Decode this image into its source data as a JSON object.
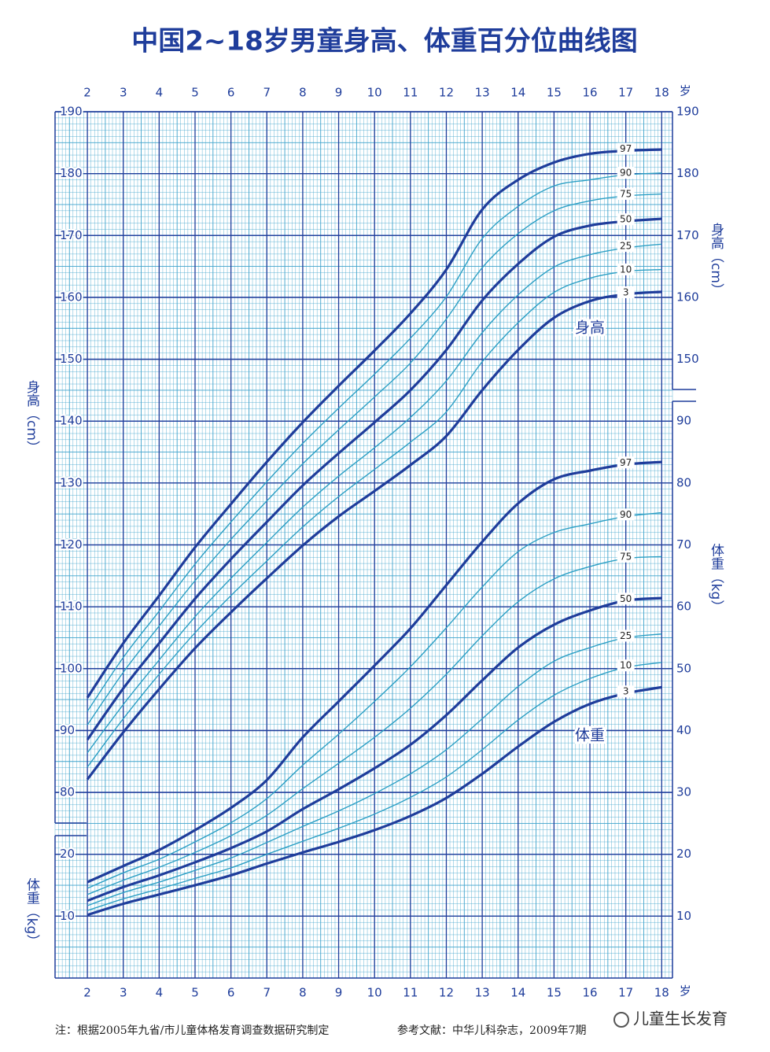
{
  "chart_data": {
    "type": "line",
    "title": "中国2~18岁男童身高、体重百分位曲线图",
    "x": [
      2,
      3,
      4,
      5,
      6,
      7,
      8,
      9,
      10,
      11,
      12,
      13,
      14,
      15,
      16,
      17,
      18
    ],
    "xlim": [
      1.1,
      18.3
    ],
    "xticks": [
      2,
      3,
      4,
      5,
      6,
      7,
      8,
      9,
      10,
      11,
      12,
      13,
      14,
      15,
      16,
      17,
      18
    ],
    "x_unit": "岁",
    "ylim": [
      50,
      190
    ],
    "yticks": [
      80,
      90,
      100,
      110,
      120,
      130,
      140,
      150,
      160,
      170,
      180,
      190
    ],
    "yticks_right": [
      150,
      160,
      170,
      180,
      190
    ],
    "y_label": "身高（cm）",
    "y2lim": [
      0,
      140
    ],
    "y2ticks": [
      10,
      20,
      30,
      40,
      50,
      60,
      70,
      80,
      90
    ],
    "y2ticks_left": [
      10,
      20
    ],
    "y2_label": "体重（kg）",
    "grid": true,
    "series": [
      {
        "name": "97",
        "color": "#1f3d9b",
        "values": [
          95.3,
          104.1,
          111.8,
          119.6,
          126.6,
          133.4,
          139.8,
          145.7,
          151.4,
          157.4,
          164.5,
          174.2,
          179.0,
          181.8,
          183.2,
          183.7,
          183.9
        ]
      },
      {
        "name": "90",
        "color": "#2b9fc4",
        "values": [
          93.1,
          101.8,
          109.3,
          116.9,
          123.7,
          130.2,
          136.4,
          142.1,
          147.6,
          153.4,
          160.1,
          169.5,
          174.7,
          178.0,
          179.0,
          179.8,
          180.1
        ]
      },
      {
        "name": "75",
        "color": "#2b9fc4",
        "values": [
          90.9,
          99.4,
          106.9,
          114.2,
          120.9,
          127.1,
          133.1,
          138.6,
          143.9,
          149.4,
          156.5,
          164.8,
          170.3,
          174.0,
          175.6,
          176.4,
          176.7
        ]
      },
      {
        "name": "50",
        "color": "#1f3d9b",
        "values": [
          88.5,
          96.8,
          104.1,
          111.3,
          117.7,
          123.7,
          129.6,
          134.8,
          139.8,
          145.0,
          151.5,
          159.5,
          165.4,
          169.8,
          171.6,
          172.3,
          172.7
        ]
      },
      {
        "name": "25",
        "color": "#2b9fc4",
        "values": [
          86.4,
          94.2,
          101.4,
          108.4,
          114.6,
          120.4,
          126.1,
          131.1,
          135.7,
          140.6,
          146.5,
          154.3,
          160.4,
          164.9,
          166.9,
          168.0,
          168.6
        ]
      },
      {
        "name": "10",
        "color": "#2b9fc4",
        "values": [
          84.1,
          91.9,
          99.1,
          105.8,
          111.8,
          117.4,
          122.9,
          127.8,
          132.2,
          136.6,
          141.5,
          149.6,
          155.9,
          160.8,
          163.1,
          164.2,
          164.5
        ]
      },
      {
        "name": "3",
        "color": "#1f3d9b",
        "values": [
          82.1,
          89.7,
          96.7,
          103.3,
          109.1,
          114.6,
          119.9,
          124.6,
          128.7,
          132.9,
          137.6,
          145.0,
          151.5,
          156.7,
          159.4,
          160.5,
          160.9
        ]
      },
      {
        "name": "97",
        "color": "#1f3d9b",
        "axis": "y2",
        "values": [
          15.5,
          18.1,
          20.7,
          23.9,
          27.5,
          32.0,
          38.9,
          44.7,
          50.5,
          56.5,
          63.5,
          70.5,
          76.7,
          80.6,
          82.0,
          83.0,
          83.4
        ]
      },
      {
        "name": "90",
        "color": "#2b9fc4",
        "axis": "y2",
        "values": [
          14.5,
          17.0,
          19.2,
          22.0,
          25.1,
          29.0,
          34.4,
          39.4,
          44.7,
          50.3,
          56.6,
          63.2,
          68.9,
          72.0,
          73.4,
          74.6,
          75.2
        ]
      },
      {
        "name": "75",
        "color": "#2b9fc4",
        "axis": "y2",
        "values": [
          13.5,
          15.8,
          17.9,
          20.3,
          23.0,
          26.3,
          30.6,
          34.7,
          38.9,
          43.6,
          49.1,
          55.3,
          60.8,
          64.5,
          66.5,
          67.8,
          68.1
        ]
      },
      {
        "name": "50",
        "color": "#1f3d9b",
        "axis": "y2",
        "values": [
          12.5,
          14.7,
          16.6,
          18.7,
          21.0,
          23.7,
          27.3,
          30.5,
          33.9,
          37.7,
          42.5,
          48.1,
          53.4,
          57.1,
          59.4,
          61.0,
          61.4
        ]
      },
      {
        "name": "25",
        "color": "#2b9fc4",
        "axis": "y2",
        "values": [
          11.7,
          13.8,
          15.5,
          17.4,
          19.4,
          21.9,
          24.5,
          27.0,
          29.8,
          33.0,
          36.9,
          41.9,
          47.1,
          51.2,
          53.4,
          55.0,
          55.6
        ]
      },
      {
        "name": "10",
        "color": "#2b9fc4",
        "axis": "y2",
        "values": [
          10.9,
          12.8,
          14.4,
          16.1,
          17.8,
          20.0,
          22.1,
          24.2,
          26.5,
          29.2,
          32.5,
          36.9,
          41.7,
          45.7,
          48.4,
          50.2,
          51.0
        ]
      },
      {
        "name": "3",
        "color": "#1f3d9b",
        "axis": "y2",
        "values": [
          10.2,
          12.0,
          13.5,
          15.0,
          16.6,
          18.5,
          20.3,
          22.0,
          23.9,
          26.2,
          29.1,
          33.0,
          37.4,
          41.4,
          44.3,
          46.0,
          47.0
        ]
      }
    ],
    "annotations": [
      "身高",
      "体重"
    ]
  },
  "notes": [
    "注：根据2005年九省/市儿童体格发育调查数据研究制定",
    "参考文献：中华儿科杂志，2009年7期"
  ],
  "watermark": "儿童生长发育"
}
